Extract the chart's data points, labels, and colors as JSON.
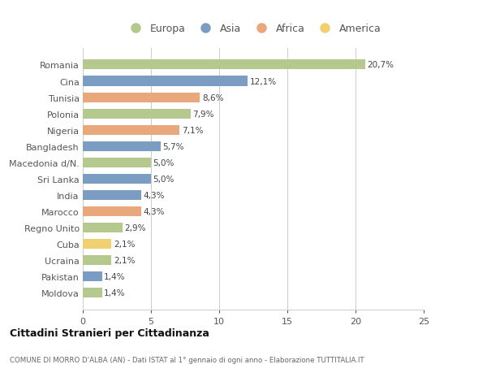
{
  "categories": [
    "Romania",
    "Cina",
    "Tunisia",
    "Polonia",
    "Nigeria",
    "Bangladesh",
    "Macedonia d/N.",
    "Sri Lanka",
    "India",
    "Marocco",
    "Regno Unito",
    "Cuba",
    "Ucraina",
    "Pakistan",
    "Moldova"
  ],
  "values": [
    20.7,
    12.1,
    8.6,
    7.9,
    7.1,
    5.7,
    5.0,
    5.0,
    4.3,
    4.3,
    2.9,
    2.1,
    2.1,
    1.4,
    1.4
  ],
  "labels": [
    "20,7%",
    "12,1%",
    "8,6%",
    "7,9%",
    "7,1%",
    "5,7%",
    "5,0%",
    "5,0%",
    "4,3%",
    "4,3%",
    "2,9%",
    "2,1%",
    "2,1%",
    "1,4%",
    "1,4%"
  ],
  "continents": [
    "Europa",
    "Asia",
    "Africa",
    "Europa",
    "Africa",
    "Asia",
    "Europa",
    "Asia",
    "Asia",
    "Africa",
    "Europa",
    "America",
    "Europa",
    "Asia",
    "Europa"
  ],
  "colors": {
    "Europa": "#b5c98e",
    "Asia": "#7b9dc4",
    "Africa": "#e8a87c",
    "America": "#f0d070"
  },
  "legend_order": [
    "Europa",
    "Asia",
    "Africa",
    "America"
  ],
  "title": "Cittadini Stranieri per Cittadinanza",
  "subtitle": "COMUNE DI MORRO D'ALBA (AN) - Dati ISTAT al 1° gennaio di ogni anno - Elaborazione TUTTITALIA.IT",
  "xlim": [
    0,
    25
  ],
  "xticks": [
    0,
    5,
    10,
    15,
    20,
    25
  ],
  "background_color": "#ffffff",
  "grid_color": "#cccccc"
}
